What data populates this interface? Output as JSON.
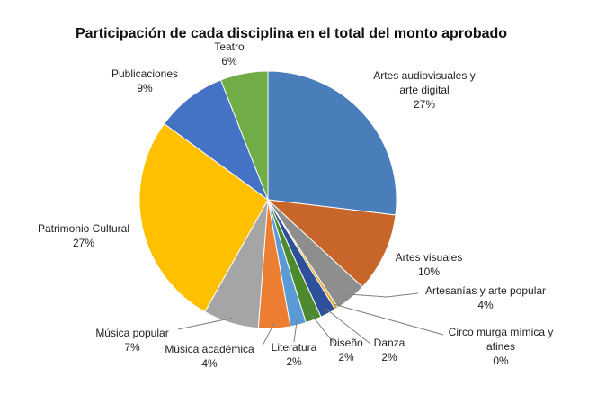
{
  "chart_data": {
    "type": "pie",
    "title": "Participación de cada disciplina en el total del monto aprobado",
    "start_angle_deg": 0,
    "direction": "clockwise",
    "slices": [
      {
        "label_lines": [
          "Artes audiovisuales y",
          "arte digital"
        ],
        "value": 27,
        "pct_label": "27%",
        "color": "#4A7EBB"
      },
      {
        "label_lines": [
          "Artes visuales"
        ],
        "value": 10,
        "pct_label": "10%",
        "color": "#C8652A"
      },
      {
        "label_lines": [
          "Artesanías y arte popular"
        ],
        "value": 4,
        "pct_label": "4%",
        "color": "#8E8E8E"
      },
      {
        "label_lines": [
          "Circo murga mímica y",
          "afines"
        ],
        "value": 0.4,
        "pct_label": "0%",
        "color": "#E6A920"
      },
      {
        "label_lines": [
          "Danza"
        ],
        "value": 2,
        "pct_label": "2%",
        "color": "#2E4F9A"
      },
      {
        "label_lines": [
          "Diseño"
        ],
        "value": 2,
        "pct_label": "2%",
        "color": "#4D8A2E"
      },
      {
        "label_lines": [
          "Literatura"
        ],
        "value": 2,
        "pct_label": "2%",
        "color": "#5B9BD5"
      },
      {
        "label_lines": [
          "Música académica"
        ],
        "value": 4,
        "pct_label": "4%",
        "color": "#ED7D31"
      },
      {
        "label_lines": [
          "Música popular"
        ],
        "value": 7,
        "pct_label": "7%",
        "color": "#A5A5A5"
      },
      {
        "label_lines": [
          "Patrimonio Cultural"
        ],
        "value": 27,
        "pct_label": "27%",
        "color": "#FFC000"
      },
      {
        "label_lines": [
          "Publicaciones"
        ],
        "value": 9,
        "pct_label": "9%",
        "color": "#4472C4"
      },
      {
        "label_lines": [
          "Teatro"
        ],
        "value": 6,
        "pct_label": "6%",
        "color": "#70AD47"
      }
    ]
  }
}
